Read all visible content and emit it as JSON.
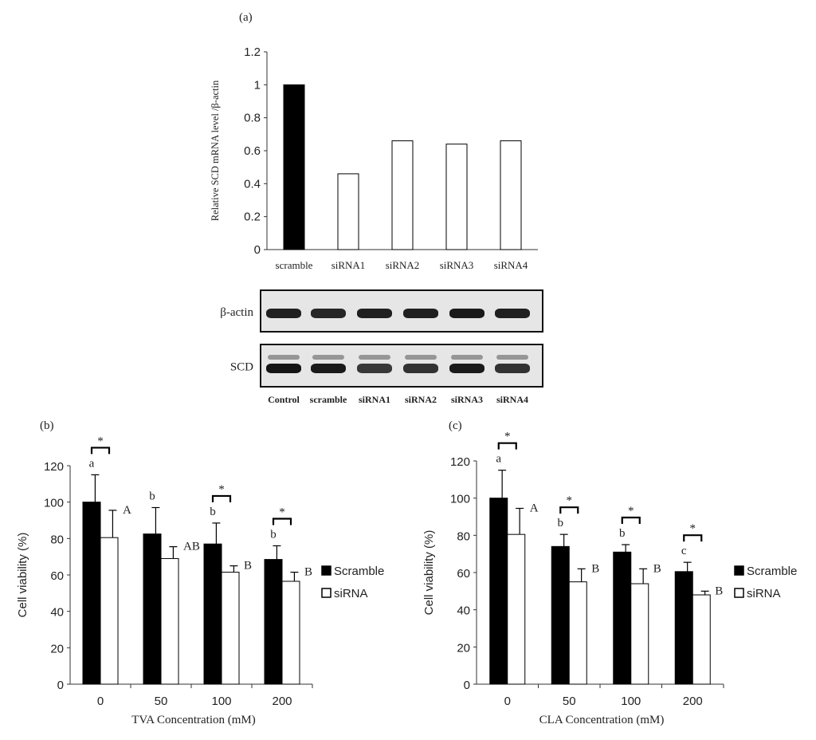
{
  "figure": {
    "panel_a_label": "(a)",
    "panel_b_label": "(b)",
    "panel_c_label": "(c)"
  },
  "blot": {
    "rows": [
      {
        "label": "β-actin",
        "intensities": [
          0.9,
          0.85,
          0.9,
          0.9,
          0.95,
          0.9
        ]
      },
      {
        "label": "SCD",
        "intensities": [
          1.0,
          0.95,
          0.7,
          0.75,
          0.95,
          0.75
        ]
      }
    ],
    "lanes": [
      "Control",
      "scramble",
      "siRNA1",
      "siRNA2",
      "siRNA3",
      "siRNA4"
    ]
  },
  "chart_data": [
    {
      "type": "bar",
      "panel": "(a)",
      "ylabel": "Relative SCD mRNA level /β-actin",
      "xlabel": "",
      "ylim": [
        0,
        1.2
      ],
      "yticks": [
        "0",
        "0.2",
        "0.4",
        "0.6",
        "0.8",
        "1",
        "1.2"
      ],
      "categories": [
        "scramble",
        "siRNA1",
        "siRNA2",
        "siRNA3",
        "siRNA4"
      ],
      "values": [
        1.0,
        0.46,
        0.66,
        0.64,
        0.66
      ],
      "colors": [
        "#000000",
        "#ffffff",
        "#ffffff",
        "#ffffff",
        "#ffffff"
      ],
      "grid": false
    },
    {
      "type": "bar",
      "panel": "(b)",
      "xlabel": "TVA Concentration (mM)",
      "ylabel": "Cell viability (%)",
      "ylim": [
        0,
        120
      ],
      "yticks": [
        "0",
        "20",
        "40",
        "60",
        "80",
        "100",
        "120"
      ],
      "categories": [
        "0",
        "50",
        "100",
        "200"
      ],
      "series": [
        {
          "name": "Scramble",
          "color": "#000000",
          "values": [
            100,
            82.5,
            77,
            68.5
          ],
          "errors": [
            15,
            14.5,
            11.5,
            7.5
          ],
          "letters": [
            "a",
            "b",
            "b",
            "b"
          ]
        },
        {
          "name": "siRNA",
          "color": "#ffffff",
          "values": [
            80.5,
            69,
            61.5,
            56.5
          ],
          "errors": [
            15,
            6.5,
            3.5,
            5
          ],
          "letters": [
            "A",
            "AB",
            "B",
            "B"
          ]
        }
      ],
      "significance": [
        "*",
        "",
        "*",
        "*"
      ],
      "legend": "right",
      "grid": false
    },
    {
      "type": "bar",
      "panel": "(c)",
      "xlabel": "CLA Concentration (mM)",
      "ylabel": "Cell viability (%)",
      "ylim": [
        0,
        120
      ],
      "yticks": [
        "0",
        "20",
        "40",
        "60",
        "80",
        "100",
        "120"
      ],
      "categories": [
        "0",
        "50",
        "100",
        "200"
      ],
      "series": [
        {
          "name": "Scramble",
          "color": "#000000",
          "values": [
            100,
            74,
            71,
            60.5
          ],
          "errors": [
            15,
            6.5,
            4,
            5
          ],
          "letters": [
            "a",
            "b",
            "b",
            "c"
          ]
        },
        {
          "name": "siRNA",
          "color": "#ffffff",
          "values": [
            80.5,
            55,
            54,
            48
          ],
          "errors": [
            14,
            7,
            8,
            2
          ],
          "letters": [
            "A",
            "B",
            "B",
            "B"
          ]
        }
      ],
      "significance": [
        "*",
        "*",
        "*",
        "*"
      ],
      "legend": "right",
      "grid": false
    }
  ]
}
